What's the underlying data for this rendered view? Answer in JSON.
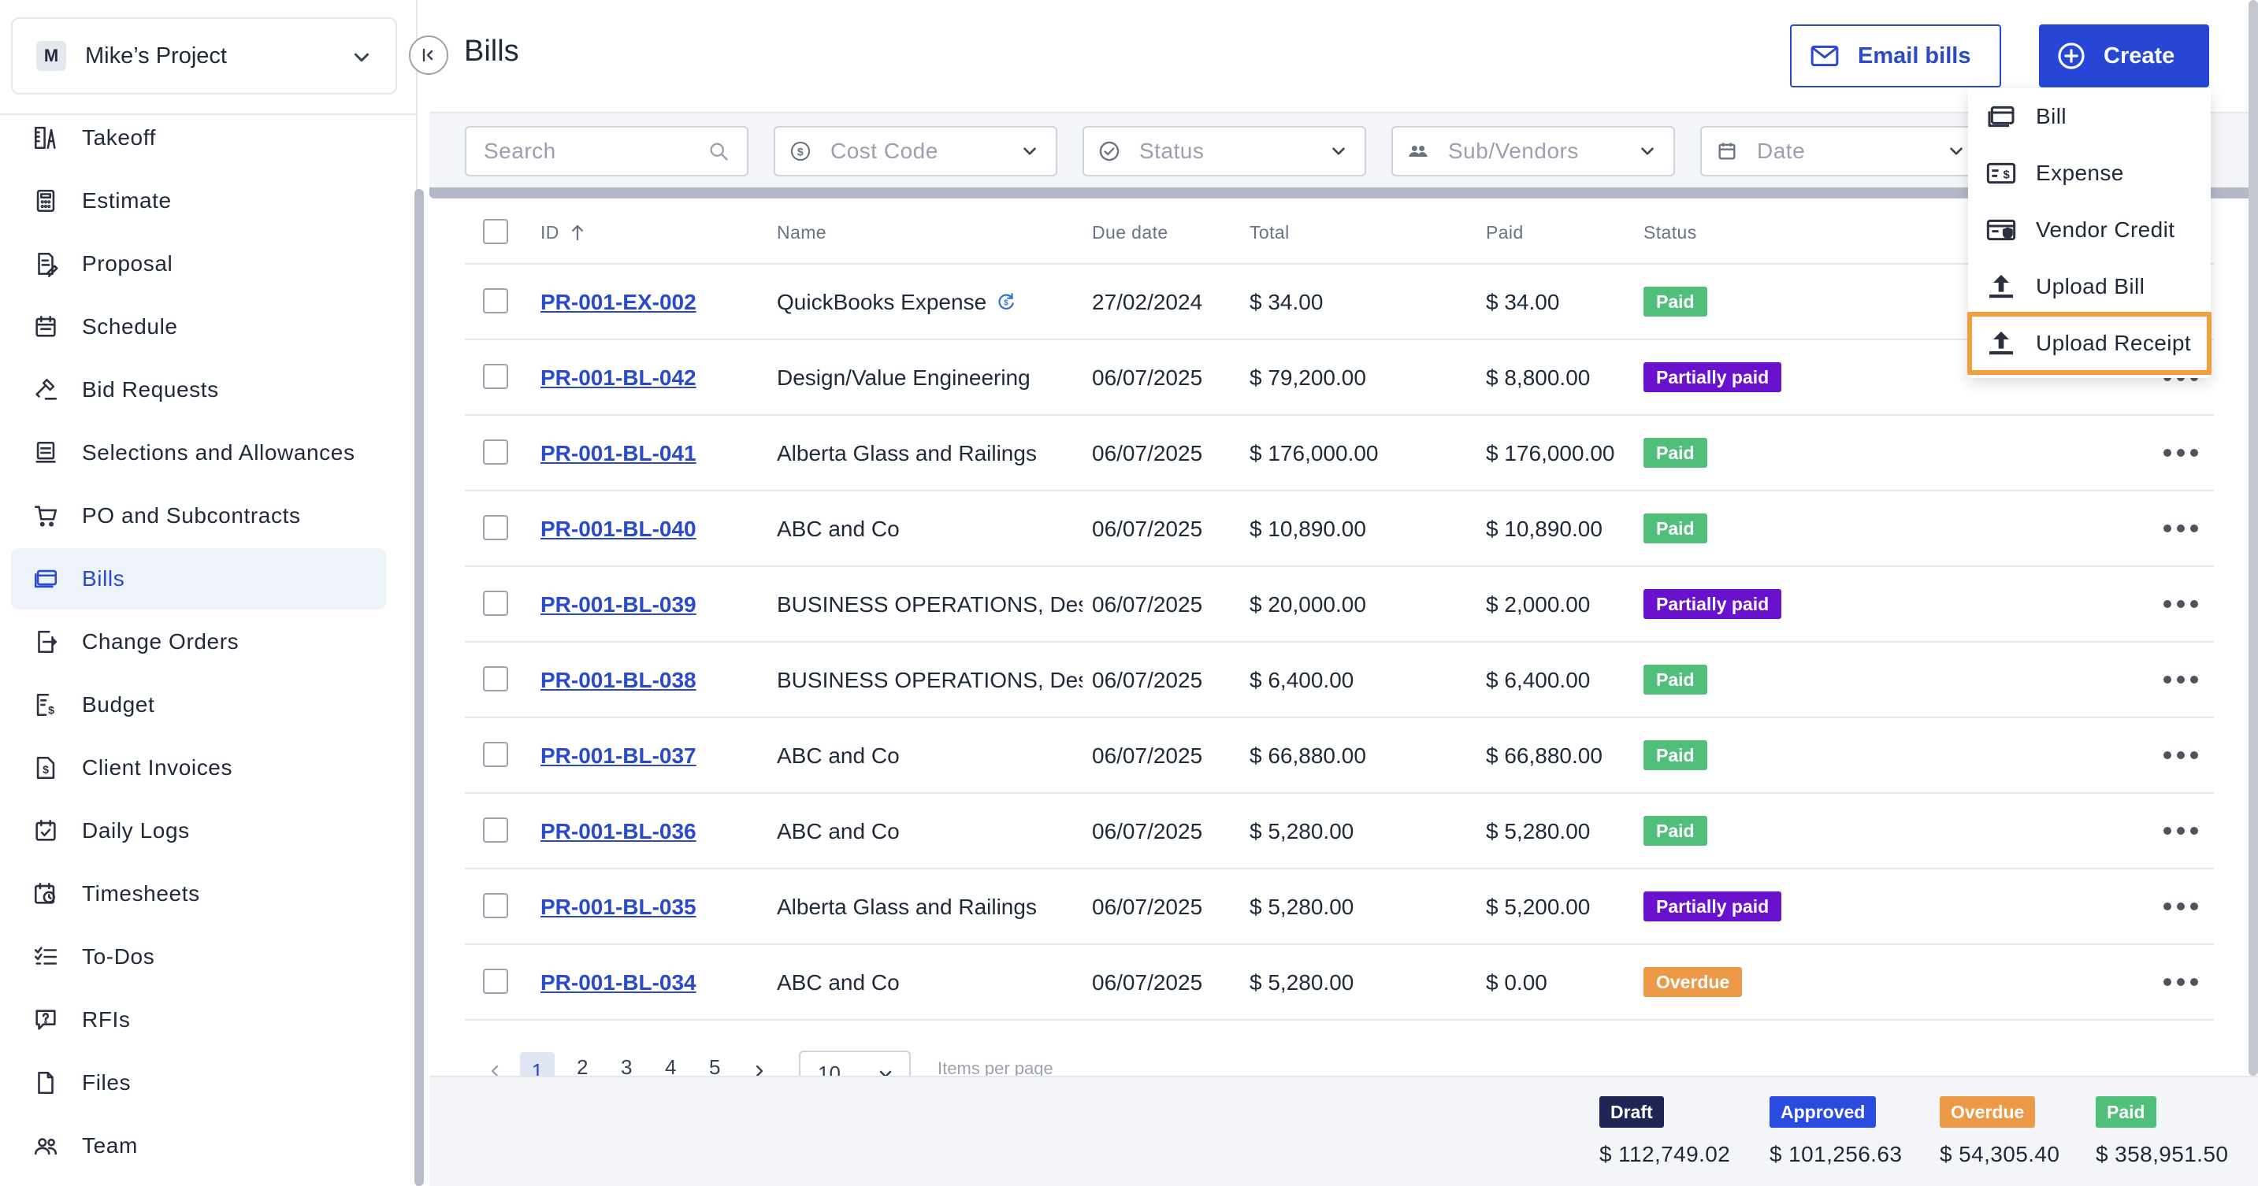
{
  "project": {
    "avatar": "M",
    "name": "Mike’s Project"
  },
  "sidebar": {
    "items": [
      {
        "label": "Takeoff",
        "icon": "takeoff-icon"
      },
      {
        "label": "Estimate",
        "icon": "calculator-icon"
      },
      {
        "label": "Proposal",
        "icon": "proposal-icon"
      },
      {
        "label": "Schedule",
        "icon": "calendar-icon"
      },
      {
        "label": "Bid Requests",
        "icon": "gavel-icon"
      },
      {
        "label": "Selections and Allowances",
        "icon": "selections-icon"
      },
      {
        "label": "PO and Subcontracts",
        "icon": "cart-icon"
      },
      {
        "label": "Bills",
        "icon": "bills-icon",
        "active": true
      },
      {
        "label": "Change Orders",
        "icon": "change-orders-icon"
      },
      {
        "label": "Budget",
        "icon": "budget-icon"
      },
      {
        "label": "Client Invoices",
        "icon": "invoice-icon"
      },
      {
        "label": "Daily Logs",
        "icon": "daily-logs-icon"
      },
      {
        "label": "Timesheets",
        "icon": "timesheets-icon"
      },
      {
        "label": "To-Dos",
        "icon": "todos-icon"
      },
      {
        "label": "RFIs",
        "icon": "rfi-icon"
      },
      {
        "label": "Files",
        "icon": "file-icon"
      },
      {
        "label": "Team",
        "icon": "team-icon"
      }
    ]
  },
  "header": {
    "title": "Bills",
    "email_button": "Email bills",
    "create_button": "Create"
  },
  "filters": {
    "search_placeholder": "Search",
    "cost_code": "Cost Code",
    "status": "Status",
    "sub_vendors": "Sub/Vendors",
    "date": "Date"
  },
  "table": {
    "columns": [
      "ID",
      "Name",
      "Due date",
      "Total",
      "Paid",
      "Status"
    ],
    "rows": [
      {
        "id": "PR-001-EX-002",
        "name": "QuickBooks Expense",
        "due": "27/02/2024",
        "total": "$ 34.00",
        "paid": "$ 34.00",
        "status": "Paid",
        "qb_icon": true
      },
      {
        "id": "PR-001-BL-042",
        "name": "Design/Value Engineering",
        "due": "06/07/2025",
        "total": "$ 79,200.00",
        "paid": "$ 8,800.00",
        "status": "Partially paid"
      },
      {
        "id": "PR-001-BL-041",
        "name": "Alberta Glass and Railings",
        "due": "06/07/2025",
        "total": "$ 176,000.00",
        "paid": "$ 176,000.00",
        "status": "Paid"
      },
      {
        "id": "PR-001-BL-040",
        "name": "ABC and Co",
        "due": "06/07/2025",
        "total": "$ 10,890.00",
        "paid": "$ 10,890.00",
        "status": "Paid"
      },
      {
        "id": "PR-001-BL-039",
        "name": "BUSINESS OPERATIONS, Design/Value Engineering",
        "due": "06/07/2025",
        "total": "$ 20,000.00",
        "paid": "$ 2,000.00",
        "status": "Partially paid"
      },
      {
        "id": "PR-001-BL-038",
        "name": "BUSINESS OPERATIONS, Design/Value Engineering",
        "due": "06/07/2025",
        "total": "$ 6,400.00",
        "paid": "$ 6,400.00",
        "status": "Paid"
      },
      {
        "id": "PR-001-BL-037",
        "name": "ABC and Co",
        "due": "06/07/2025",
        "total": "$ 66,880.00",
        "paid": "$ 66,880.00",
        "status": "Paid"
      },
      {
        "id": "PR-001-BL-036",
        "name": "ABC and Co",
        "due": "06/07/2025",
        "total": "$ 5,280.00",
        "paid": "$ 5,280.00",
        "status": "Paid"
      },
      {
        "id": "PR-001-BL-035",
        "name": "Alberta Glass and Railings",
        "due": "06/07/2025",
        "total": "$ 5,280.00",
        "paid": "$ 5,200.00",
        "status": "Partially paid"
      },
      {
        "id": "PR-001-BL-034",
        "name": "ABC and Co",
        "due": "06/07/2025",
        "total": "$ 5,280.00",
        "paid": "$ 0.00",
        "status": "Overdue"
      }
    ]
  },
  "status_colors": {
    "Paid": "#4fbf7a",
    "Partially paid": "#6a11cb",
    "Overdue": "#ec9a48",
    "Draft": "#1e2656",
    "Approved": "#2b4be0"
  },
  "pagination": {
    "pages": [
      "1",
      "2",
      "3",
      "4",
      "5"
    ],
    "current": "1",
    "page_size": "10",
    "items_label": "Items per page"
  },
  "summary": [
    {
      "label": "Draft",
      "value": "$ 112,749.02"
    },
    {
      "label": "Approved",
      "value": "$ 101,256.63"
    },
    {
      "label": "Overdue",
      "value": "$ 54,305.40"
    },
    {
      "label": "Paid",
      "value": "$ 358,951.50"
    }
  ],
  "create_menu": {
    "items": [
      {
        "label": "Bill",
        "icon": "bill-icon"
      },
      {
        "label": "Expense",
        "icon": "expense-icon"
      },
      {
        "label": "Vendor Credit",
        "icon": "vendor-credit-icon"
      },
      {
        "label": "Upload Bill",
        "icon": "upload-icon"
      },
      {
        "label": "Upload Receipt",
        "icon": "upload-icon",
        "highlighted": true
      }
    ]
  }
}
